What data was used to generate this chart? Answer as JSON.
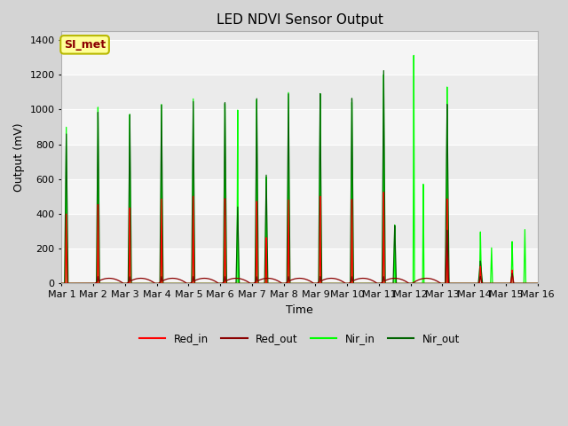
{
  "title": "LED NDVI Sensor Output",
  "xlabel": "Time",
  "ylabel": "Output (mV)",
  "ylim": [
    0,
    1450
  ],
  "xlim": [
    0,
    15
  ],
  "xtick_labels": [
    "Mar 1",
    "Mar 2",
    "Mar 3",
    "Mar 4",
    "Mar 5",
    "Mar 6",
    "Mar 7",
    "Mar 8",
    "Mar 9",
    "Mar 10",
    "Mar 11",
    "Mar 12",
    "Mar 13",
    "Mar 14",
    "Mar 15",
    "Mar 16"
  ],
  "xtick_positions": [
    0,
    1,
    2,
    3,
    4,
    5,
    6,
    7,
    8,
    9,
    10,
    11,
    12,
    13,
    14,
    15
  ],
  "ytick_labels": [
    "0",
    "200",
    "400",
    "600",
    "800",
    "1000",
    "1200",
    "1400"
  ],
  "ytick_positions": [
    0,
    200,
    400,
    600,
    800,
    1000,
    1200,
    1400
  ],
  "legend_labels": [
    "Red_in",
    "Red_out",
    "Nir_in",
    "Nir_out"
  ],
  "legend_colors": [
    "#ff0000",
    "#8b0000",
    "#00ff00",
    "#006400"
  ],
  "annotation_text": "SI_met",
  "annotation_color": "#8b0000",
  "annotation_bg": "#ffff99",
  "title_fontsize": 11,
  "label_fontsize": 9,
  "tick_fontsize": 8,
  "legend_fontsize": 8.5,
  "red_in_color": "#ff0000",
  "red_out_color": "#8b0000",
  "nir_in_color": "#00ff00",
  "nir_out_color": "#006400",
  "fig_facecolor": "#d4d4d4",
  "ax_facecolor": "#e8e8e8",
  "band1_color": "#dcdcdc",
  "band2_color": "#f0f0f0"
}
